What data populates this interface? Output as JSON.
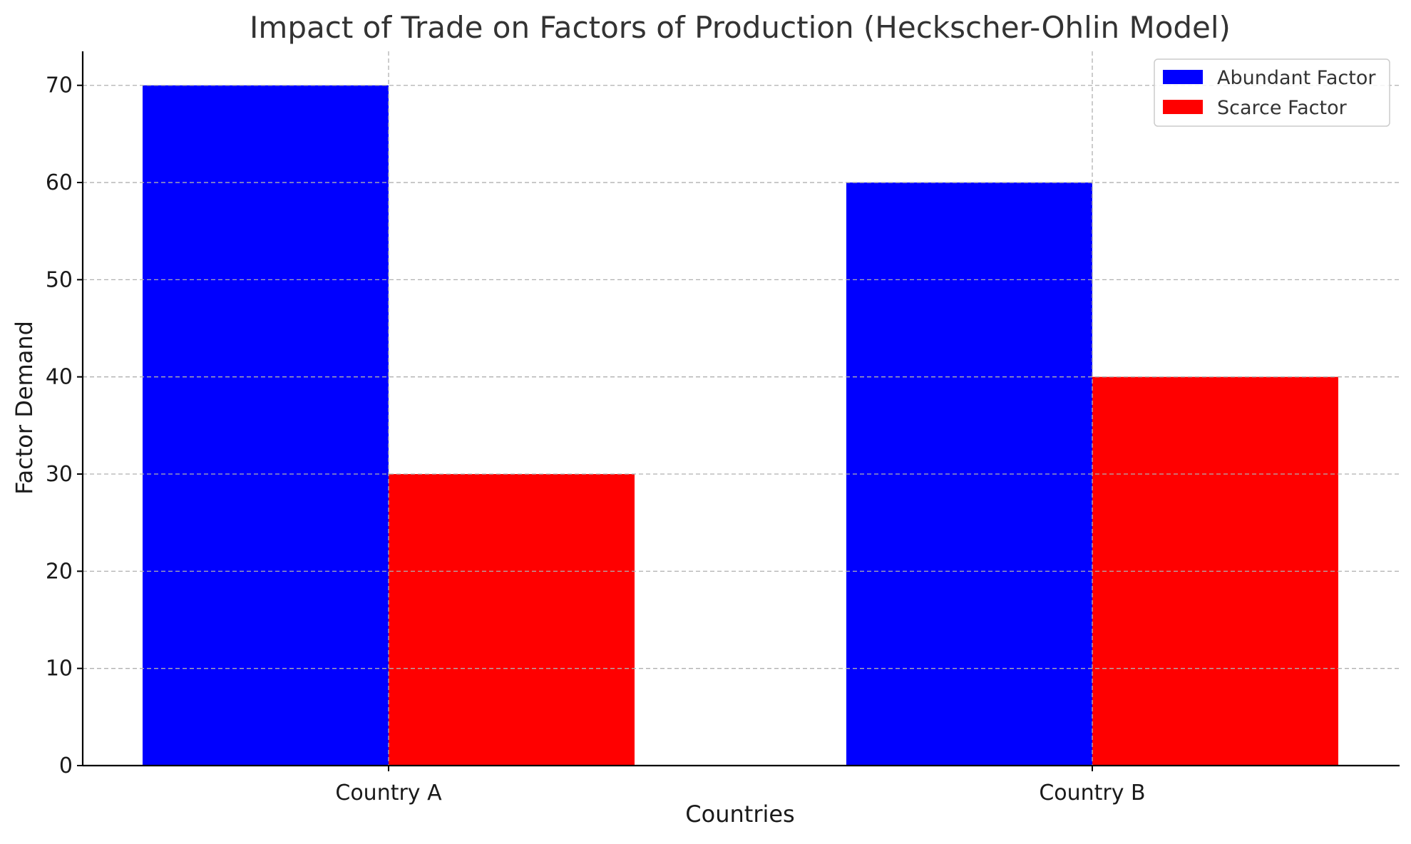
{
  "chart_data": {
    "type": "bar",
    "title": "Impact of Trade on Factors of Production (Heckscher-Ohlin Model)",
    "xlabel": "Countries",
    "ylabel": "Factor Demand",
    "categories": [
      "Country A",
      "Country B"
    ],
    "series": [
      {
        "name": "Abundant Factor",
        "values": [
          70,
          60
        ],
        "color": "#0000ff"
      },
      {
        "name": "Scarce Factor",
        "values": [
          30,
          40
        ],
        "color": "#ff0000"
      }
    ],
    "ylim": [
      0,
      73.5
    ],
    "yticks": [
      0,
      10,
      20,
      30,
      40,
      50,
      60,
      70
    ],
    "grid": true,
    "legend_position": "top-right"
  }
}
